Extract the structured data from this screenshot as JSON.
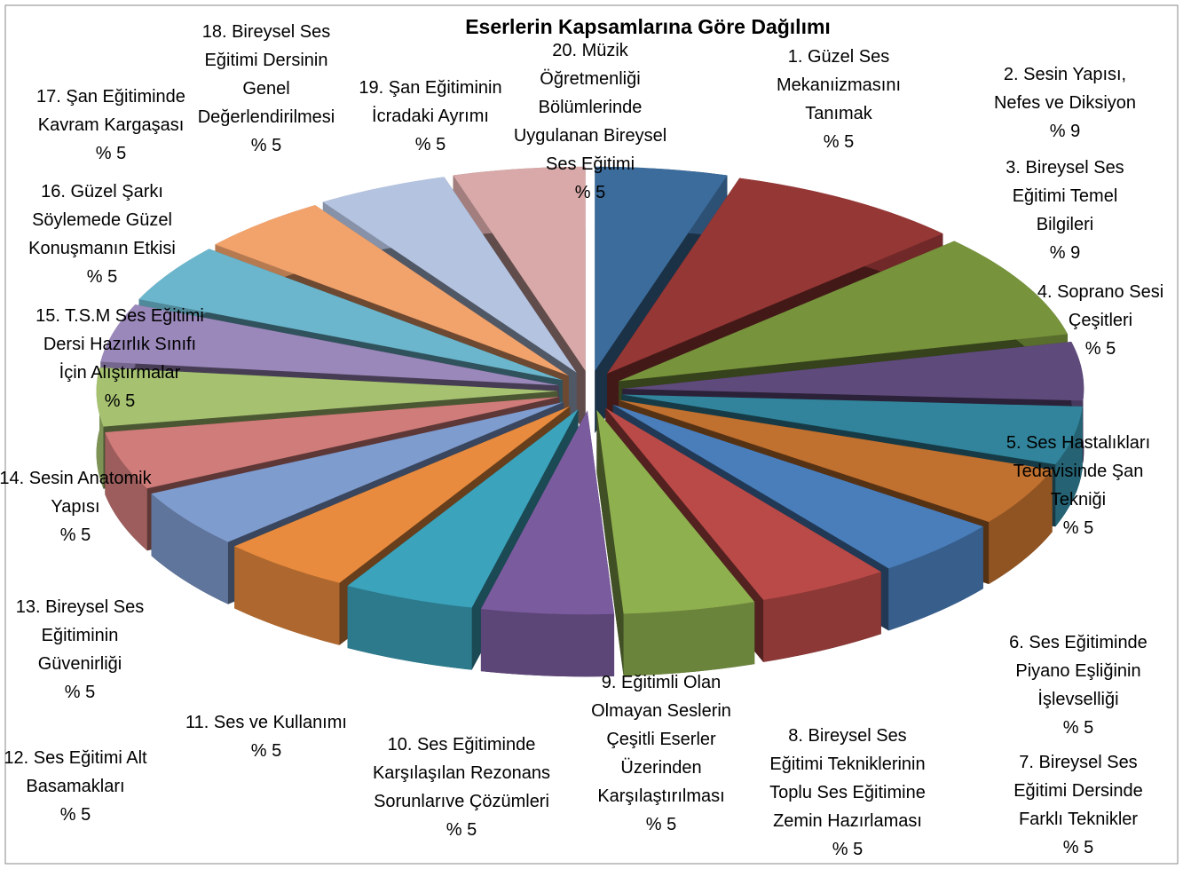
{
  "chart_data": {
    "type": "pie3d",
    "title": "Eserlerin Kapsamlarına Göre Dağılımı",
    "categories": [
      "1. Güzel Ses Mekanıizmasını Tanımak",
      "2. Sesin Yapısı, Nefes ve Diksiyon",
      "3. Bireysel Ses Eğitimi Temel Bilgileri",
      "4. Soprano Sesi Çeşitleri",
      "5. Ses Hastalıkları Tedavisinde Şan Tekniği",
      "6. Ses Eğitiminde Piyano Eşliğinin İşlevselliği",
      "7. Bireysel Ses Eğitimi Dersinde Farklı Teknikler",
      "8. Bireysel Ses Eğitimi Tekniklerinin Toplu Ses Eğitimine Zemin Hazırlaması",
      "9. Eğitimli Olan Olmayan Seslerin Çeşitli Eserler Üzerinden Karşılaştırılması",
      "10. Ses Eğitiminde Karşılaşılan Rezonans Sorunlarıve Çözümleri",
      "11. Ses ve Kullanımı",
      "12. Ses Eğitimi Alt Basamakları",
      "13. Bireysel Ses Eğitiminin Güvenirliği",
      "14. Sesin Anatomik Yapısı",
      "15. T.S.M Ses Eğitimi Dersi Hazırlık Sınıfı İçin Alıştırmalar",
      "16. Güzel Şarkı Söylemede Güzel Konuşmanın Etkisi",
      "17. Şan Eğitiminde Kavram Kargaşası",
      "18. Bireysel Ses Eğitimi Dersinin Genel Değerlendirilmesi",
      "19. Şan Eğitiminin İcradaki Ayrımı",
      "20. Müzik Öğretmenliği Bölümlerinde Uygulanan Bireysel Ses Eğitimi"
    ],
    "values": [
      5,
      9,
      9,
      5,
      5,
      5,
      5,
      5,
      5,
      5,
      5,
      5,
      5,
      5,
      5,
      5,
      5,
      5,
      5,
      5
    ],
    "value_labels": [
      "% 5",
      "% 9",
      "% 9",
      "% 5",
      "% 5",
      "% 5",
      "% 5",
      "% 5",
      "% 5",
      "% 5",
      "% 5",
      "% 5",
      "% 5",
      "% 5",
      "% 5",
      "% 5",
      "% 5",
      "% 5",
      "% 5",
      "% 5"
    ],
    "colors": [
      "#3c6c9c",
      "#953735",
      "#77933c",
      "#5f4a7c",
      "#31849b",
      "#c0702f",
      "#4a7ebb",
      "#b94a48",
      "#8fb04f",
      "#7a5c9e",
      "#3ba3bb",
      "#e88b3e",
      "#7f9ccf",
      "#d07c7a",
      "#a6c271",
      "#9b88bb",
      "#6bb6cc",
      "#f2a36c",
      "#b4c3e0",
      "#d8a9a8"
    ]
  }
}
